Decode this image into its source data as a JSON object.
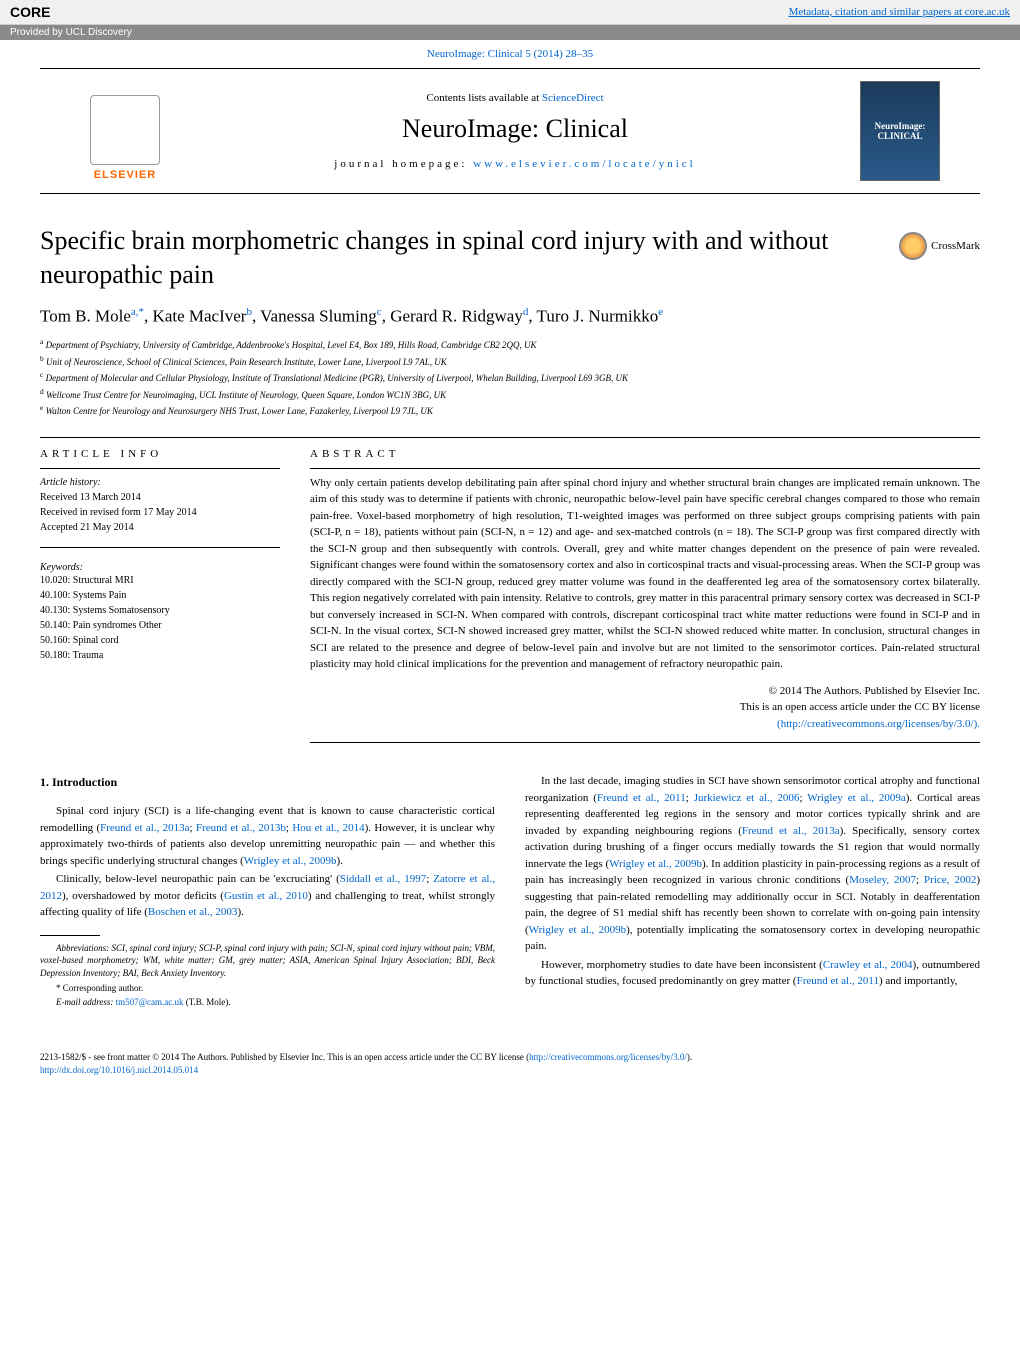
{
  "banner": {
    "core_logo": "CORE",
    "right_link": "Metadata, citation and similar papers at core.ac.uk",
    "provided_by": "Provided by UCL Discovery"
  },
  "citation": "NeuroImage: Clinical 5 (2014) 28–35",
  "header": {
    "contents_prefix": "Contents lists available at ",
    "contents_link": "ScienceDirect",
    "journal_name": "NeuroImage: Clinical",
    "homepage_prefix": "journal homepage: ",
    "homepage_link": "www.elsevier.com/locate/ynicl",
    "elsevier": "ELSEVIER",
    "cover_line1": "NeuroImage:",
    "cover_line2": "CLINICAL"
  },
  "article": {
    "title": "Specific brain morphometric changes in spinal cord injury with and without neuropathic pain",
    "crossmark": "CrossMark",
    "authors_html": "Tom B. Mole<sup>a,*</sup>, Kate MacIver<sup>b</sup>, Vanessa Sluming<sup>c</sup>, Gerard R. Ridgway<sup>d</sup>, Turo J. Nurmikko<sup>e</sup>",
    "affiliations": [
      "a Department of Psychiatry, University of Cambridge, Addenbrooke's Hospital, Level E4, Box 189, Hills Road, Cambridge CB2 2QQ, UK",
      "b Unit of Neuroscience, School of Clinical Sciences, Pain Research Institute, Lower Lane, Liverpool L9 7AL, UK",
      "c Department of Molecular and Cellular Physiology, Institute of Translational Medicine (PGR), University of Liverpool, Whelan Building, Liverpool L69 3GB, UK",
      "d Wellcome Trust Centre for Neuroimaging, UCL Institute of Neurology, Queen Square, London WC1N 3BG, UK",
      "e Walton Centre for Neurology and Neurosurgery NHS Trust, Lower Lane, Fazakerley, Liverpool L9 7JL, UK"
    ]
  },
  "info": {
    "head": "ARTICLE INFO",
    "history_label": "Article history:",
    "received": "Received 13 March 2014",
    "revised": "Received in revised form 17 May 2014",
    "accepted": "Accepted 21 May 2014",
    "keywords_label": "Keywords:",
    "keywords": [
      "10.020: Structural MRI",
      "40.100: Systems Pain",
      "40.130: Systems Somatosensory",
      "50.140: Pain syndromes Other",
      "50.160: Spinal cord",
      "50.180: Trauma"
    ]
  },
  "abstract": {
    "head": "ABSTRACT",
    "text": "Why only certain patients develop debilitating pain after spinal chord injury and whether structural brain changes are implicated remain unknown. The aim of this study was to determine if patients with chronic, neuropathic below-level pain have specific cerebral changes compared to those who remain pain-free. Voxel-based morphometry of high resolution, T1-weighted images was performed on three subject groups comprising patients with pain (SCI-P, n = 18), patients without pain (SCI-N, n = 12) and age- and sex-matched controls (n = 18). The SCI-P group was first compared directly with the SCI-N group and then subsequently with controls. Overall, grey and white matter changes dependent on the presence of pain were revealed. Significant changes were found within the somatosensory cortex and also in corticospinal tracts and visual-processing areas. When the SCI-P group was directly compared with the SCI-N group, reduced grey matter volume was found in the deafferented leg area of the somatosensory cortex bilaterally. This region negatively correlated with pain intensity. Relative to controls, grey matter in this paracentral primary sensory cortex was decreased in SCI-P but conversely increased in SCI-N. When compared with controls, discrepant corticospinal tract white matter reductions were found in SCI-P and in SCI-N. In the visual cortex, SCI-N showed increased grey matter, whilst the SCI-N showed reduced white matter. In conclusion, structural changes in SCI are related to the presence and degree of below-level pain and involve but are not limited to the sensorimotor cortices. Pain-related structural plasticity may hold clinical implications for the prevention and management of refractory neuropathic pain.",
    "copyright1": "© 2014 The Authors. Published by Elsevier Inc.",
    "copyright2": "This is an open access article under the CC BY license",
    "copyright_link": "(http://creativecommons.org/licenses/by/3.0/)."
  },
  "intro": {
    "head": "1. Introduction",
    "left_paras": [
      "Spinal cord injury (SCI) is a life-changing event that is known to cause characteristic cortical remodelling (Freund et al., 2013a; Freund et al., 2013b; Hou et al., 2014). However, it is unclear why approximately two-thirds of patients also develop unremitting neuropathic pain — and whether this brings specific underlying structural changes (Wrigley et al., 2009b).",
      "Clinically, below-level neuropathic pain can be 'excruciating' (Siddall et al., 1997; Zatorre et al., 2012), overshadowed by motor deficits (Gustin et al., 2010) and challenging to treat, whilst strongly affecting quality of life (Boschen et al., 2003)."
    ],
    "right_paras": [
      "In the last decade, imaging studies in SCI have shown sensorimotor cortical atrophy and functional reorganization (Freund et al., 2011; Jurkiewicz et al., 2006; Wrigley et al., 2009a). Cortical areas representing deafferented leg regions in the sensory and motor cortices typically shrink and are invaded by expanding neighbouring regions (Freund et al., 2013a). Specifically, sensory cortex activation during brushing of a finger occurs medially towards the S1 region that would normally innervate the legs (Wrigley et al., 2009b). In addition plasticity in pain-processing regions as a result of pain has increasingly been recognized in various chronic conditions (Moseley, 2007; Price, 2002) suggesting that pain-related remodelling may additionally occur in SCI. Notably in deafferentation pain, the degree of S1 medial shift has recently been shown to correlate with on-going pain intensity (Wrigley et al., 2009b), potentially implicating the somatosensory cortex in developing neuropathic pain.",
      "However, morphometry studies to date have been inconsistent (Crawley et al., 2004), outnumbered by functional studies, focused predominantly on grey matter (Freund et al., 2011) and importantly,"
    ]
  },
  "footnotes": {
    "abbrev": "Abbreviations: SCI, spinal cord injury; SCI-P, spinal cord injury with pain; SCI-N, spinal cord injury without pain; VBM, voxel-based morphometry; WM, white matter; GM, grey matter; ASIA, American Spinal Injury Association; BDI, Beck Depression Inventory; BAI, Beck Anxiety Inventory.",
    "corresp": "* Corresponding author.",
    "email_label": "E-mail address: ",
    "email": "tm507@cam.ac.uk",
    "email_suffix": " (T.B. Mole)."
  },
  "bottom": {
    "issn": "2213-1582/$ - see front matter © 2014 The Authors. Published by Elsevier Inc. This is an open access article under the CC BY license (",
    "cc_link": "http://creativecommons.org/licenses/by/3.0/",
    "issn_end": ").",
    "doi": "http://dx.doi.org/10.1016/j.nicl.2014.05.014"
  },
  "colors": {
    "link": "#0066cc",
    "elsevier_orange": "#ff6600",
    "banner_bg": "#f0f0f0",
    "sub_banner": "#8a8a8a"
  }
}
